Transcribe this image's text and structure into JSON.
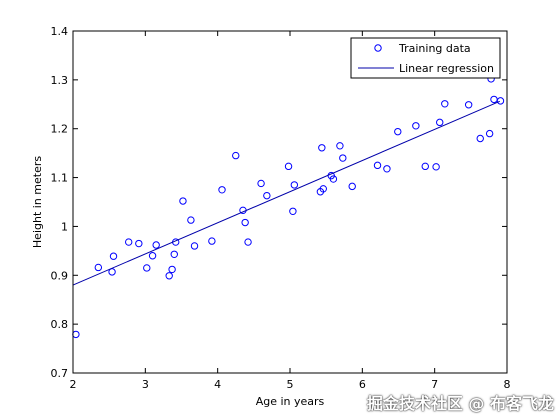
{
  "chart_data": {
    "type": "scatter",
    "xlabel": "Age in years",
    "ylabel": "Height in meters",
    "xlim": [
      2,
      8
    ],
    "ylim": [
      0.7,
      1.4
    ],
    "xticks": [
      "2",
      "3",
      "4",
      "5",
      "6",
      "7",
      "8"
    ],
    "yticks": [
      "0.7",
      "0.8",
      "0.9",
      "1",
      "1.1",
      "1.2",
      "1.3",
      "1.4"
    ],
    "grid": false,
    "legend_position": "top-right",
    "colors": {
      "series": "#0000ff",
      "axes": "#000000",
      "background": "#ffffff"
    },
    "series": [
      {
        "name": "Training data",
        "marker": "circle",
        "x": [
          2.04,
          2.35,
          2.54,
          2.56,
          2.77,
          2.91,
          3.02,
          3.1,
          3.15,
          3.33,
          3.37,
          3.4,
          3.42,
          3.52,
          3.63,
          3.68,
          3.92,
          4.06,
          4.25,
          4.35,
          4.38,
          4.42,
          4.6,
          4.68,
          4.98,
          5.04,
          5.06,
          5.42,
          5.44,
          5.46,
          5.57,
          5.6,
          5.69,
          5.73,
          5.86,
          6.21,
          6.34,
          6.49,
          6.74,
          6.87,
          7.02,
          7.07,
          7.14,
          7.47,
          7.63,
          7.76,
          7.78,
          7.82,
          7.91
        ],
        "y": [
          0.779,
          0.916,
          0.907,
          0.939,
          0.968,
          0.965,
          0.915,
          0.94,
          0.962,
          0.899,
          0.912,
          0.943,
          0.968,
          1.052,
          1.013,
          0.96,
          0.97,
          1.075,
          1.145,
          1.033,
          1.008,
          0.968,
          1.088,
          1.063,
          1.123,
          1.031,
          1.085,
          1.071,
          1.161,
          1.077,
          1.104,
          1.097,
          1.165,
          1.14,
          1.082,
          1.125,
          1.118,
          1.194,
          1.206,
          1.123,
          1.122,
          1.213,
          1.251,
          1.249,
          1.18,
          1.19,
          1.302,
          1.26,
          1.257
        ]
      },
      {
        "name": "Linear regression",
        "marker": "line",
        "x": [
          2.0,
          7.9
        ],
        "y": [
          0.88,
          1.256
        ]
      }
    ]
  },
  "watermark": "掘金技术社区 @ 布客飞龙"
}
